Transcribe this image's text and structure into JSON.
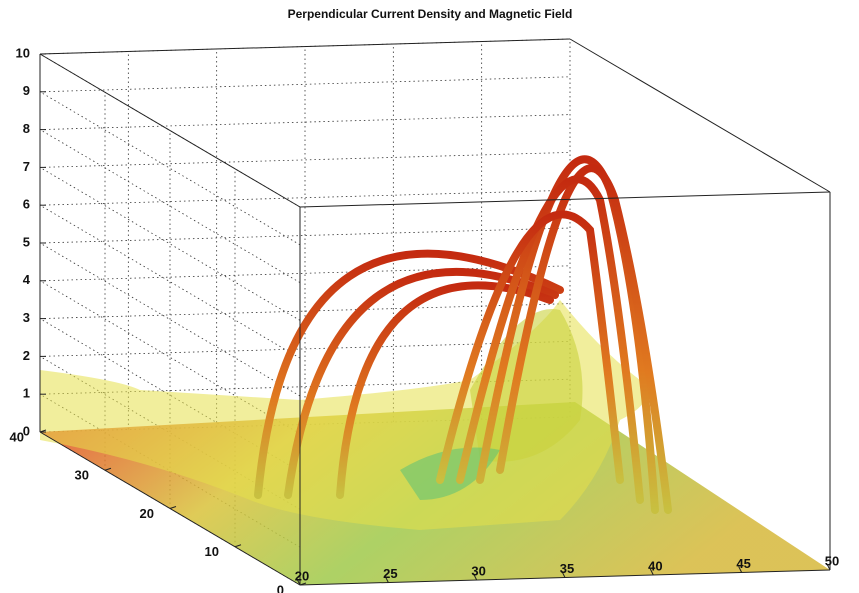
{
  "chart_data": {
    "type": "surface3d",
    "title": "Perpendicular Current Density and Magnetic Field",
    "xlim": [
      20,
      50
    ],
    "xticks": [
      20,
      25,
      30,
      35,
      40,
      45,
      50
    ],
    "ylim": [
      0,
      40
    ],
    "yticks": [
      0,
      10,
      20,
      30,
      40
    ],
    "zlim": [
      0,
      10
    ],
    "zticks": [
      0,
      1,
      2,
      3,
      4,
      5,
      6,
      7,
      8,
      9,
      10
    ],
    "grid": true
  }
}
